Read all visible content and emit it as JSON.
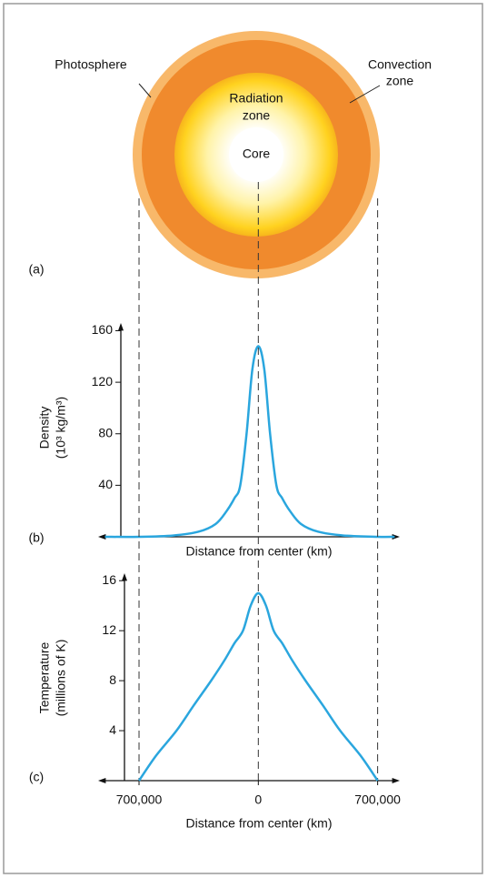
{
  "diagram": {
    "panel": "(a)",
    "photosphere": "Photosphere",
    "convection": [
      "Convection",
      "zone"
    ],
    "radiation": [
      "Radiation",
      "zone"
    ],
    "core": "Core"
  },
  "chart_data": [
    {
      "type": "line",
      "panel": "(b)",
      "y_label": [
        "Density",
        "(10³ kg/m³)"
      ],
      "x_label": "Distance from center (km)",
      "color": "#2aa6de",
      "x": [
        -900000,
        -700000,
        -500000,
        -350000,
        -250000,
        -186000,
        -140000,
        -106000,
        -69000,
        -35000,
        0,
        35000,
        69000,
        106000,
        140000,
        186000,
        250000,
        350000,
        500000,
        700000,
        800000
      ],
      "values": [
        0,
        0,
        1,
        4,
        10,
        20,
        30,
        40,
        80,
        130,
        148,
        130,
        80,
        40,
        30,
        20,
        10,
        4,
        1,
        0,
        0
      ],
      "xlim": [
        -940000,
        830000
      ],
      "ylim": [
        0,
        166
      ],
      "yticks": [
        40,
        80,
        120,
        160
      ]
    },
    {
      "type": "line",
      "panel": "(c)",
      "y_label": [
        "Temperature",
        "(millions of K)"
      ],
      "x_label": "Distance from center (km)",
      "color": "#2aa6de",
      "x": [
        -700000,
        -600000,
        -480000,
        -380000,
        -277000,
        -200000,
        -140000,
        -90000,
        -45000,
        0,
        45000,
        90000,
        140000,
        200000,
        277000,
        380000,
        480000,
        600000,
        700000
      ],
      "values": [
        0,
        2,
        4,
        6,
        8,
        9.6,
        11,
        12,
        14,
        15,
        14,
        12,
        11,
        9.6,
        8,
        6,
        4,
        2,
        0
      ],
      "xlim": [
        -940000,
        830000
      ],
      "ylim": [
        0,
        16.6
      ],
      "yticks": [
        4,
        8,
        12,
        16
      ],
      "xticks": [
        {
          "value": -700000,
          "label": "700,000"
        },
        0,
        {
          "value": 700000,
          "label": "700,000"
        }
      ]
    }
  ]
}
